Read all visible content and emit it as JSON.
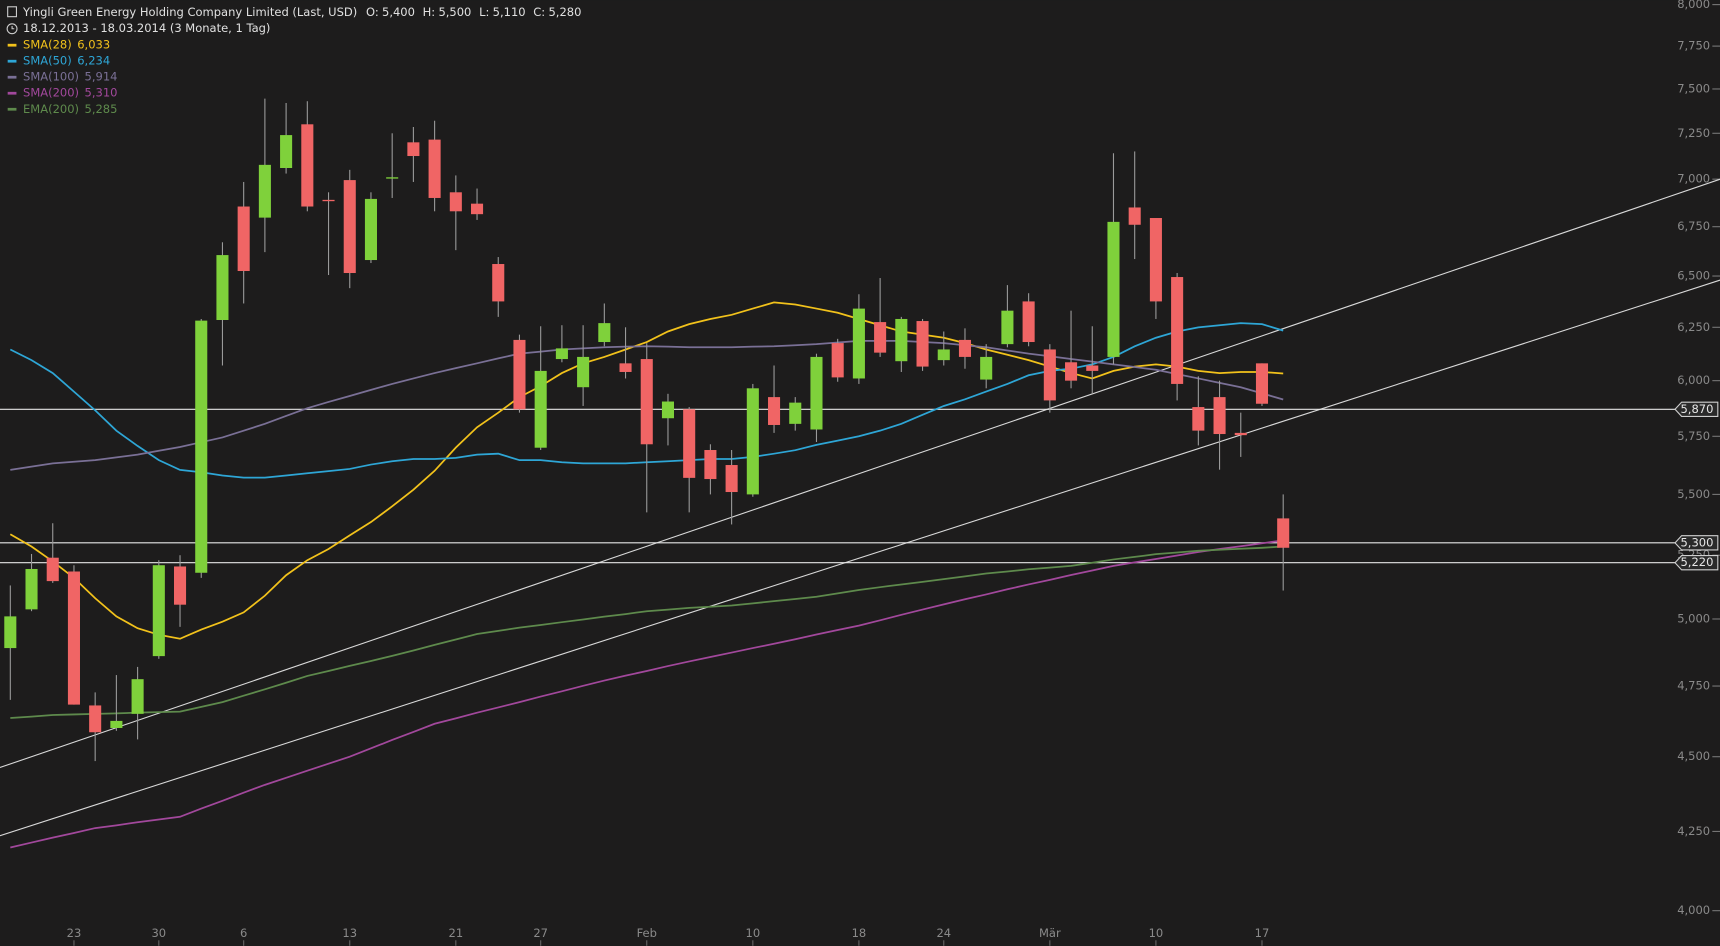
{
  "chart_data": {
    "type": "candlestick",
    "title": "Yingli Green Energy Holding Company Limited (Last, USD)",
    "ohlc_summary": [
      {
        "name": "O:",
        "label": "5,400"
      },
      {
        "name": "H:",
        "label": "5,500"
      },
      {
        "name": "L:",
        "label": "5,110"
      },
      {
        "name": "C:",
        "label": "5,280"
      }
    ],
    "subtitle": "18.12.2013 - 18.03.2014 (3 Monate, 1 Tag)",
    "categories": [
      null,
      null,
      null,
      "23",
      null,
      null,
      null,
      "30",
      null,
      null,
      null,
      "6",
      null,
      null,
      null,
      null,
      "13",
      null,
      null,
      null,
      null,
      "21",
      null,
      null,
      null,
      "27",
      null,
      null,
      null,
      null,
      "Feb",
      null,
      null,
      null,
      null,
      "10",
      null,
      null,
      null,
      null,
      "18",
      null,
      null,
      null,
      "24",
      null,
      null,
      null,
      null,
      "Mär",
      null,
      null,
      null,
      null,
      "10",
      null,
      null,
      null,
      null,
      "17",
      null
    ],
    "open": [
      4890,
      5037,
      5240,
      5185,
      4680,
      4600,
      4650,
      4860,
      5205,
      5180,
      6285,
      6855,
      6797,
      7060,
      7300,
      6890,
      6995,
      6580,
      7005,
      7200,
      7215,
      6930,
      6870,
      6560,
      6190,
      5700,
      6100,
      5970,
      6180,
      6080,
      6100,
      5830,
      5870,
      5690,
      5625,
      5500,
      5925,
      5805,
      5780,
      6175,
      6010,
      6275,
      6090,
      6280,
      6095,
      6190,
      6005,
      6170,
      6375,
      6145,
      6085,
      6070,
      6110,
      6850,
      6795,
      6495,
      5880,
      5925,
      5765,
      6080,
      5400
    ],
    "high": [
      5130,
      5255,
      5380,
      5210,
      4727,
      4790,
      4820,
      5230,
      5250,
      6290,
      6670,
      6985,
      7445,
      7420,
      7430,
      6930,
      7050,
      6930,
      7250,
      7285,
      7320,
      7020,
      6950,
      6595,
      6215,
      6255,
      6260,
      6260,
      6365,
      6250,
      6175,
      5940,
      5880,
      5715,
      5690,
      5985,
      6070,
      5925,
      6125,
      6195,
      6410,
      6490,
      6300,
      6290,
      6230,
      6245,
      6170,
      6455,
      6415,
      6170,
      6330,
      6255,
      7140,
      7150,
      6795,
      6515,
      6020,
      6000,
      5855,
      6080,
      5500
    ],
    "low": [
      4700,
      5030,
      5140,
      4683,
      4485,
      4590,
      4560,
      4850,
      4970,
      5160,
      6070,
      6365,
      6620,
      7030,
      6830,
      6505,
      6440,
      6565,
      6900,
      6985,
      6830,
      6630,
      6785,
      6300,
      5855,
      5690,
      6085,
      5885,
      6160,
      6010,
      5425,
      5710,
      5425,
      5500,
      5375,
      5490,
      5765,
      5775,
      5725,
      5995,
      5985,
      6110,
      6040,
      6045,
      6070,
      6055,
      5965,
      6155,
      6160,
      5855,
      5965,
      5940,
      6075,
      6585,
      6290,
      5910,
      5710,
      5605,
      5660,
      5885,
      5110
    ],
    "close": [
      5010,
      5195,
      5147,
      4683,
      4585,
      4625,
      4775,
      5210,
      5055,
      6282,
      6605,
      6525,
      7077,
      7240,
      6855,
      6885,
      6515,
      6895,
      7010,
      7125,
      6900,
      6830,
      6815,
      6375,
      5870,
      6045,
      6150,
      6110,
      6270,
      6040,
      5715,
      5905,
      5570,
      5565,
      5510,
      5965,
      5800,
      5900,
      6110,
      6015,
      6340,
      6130,
      6290,
      6065,
      6145,
      6110,
      6110,
      6330,
      6180,
      5910,
      6000,
      6045,
      6775,
      6760,
      6375,
      5985,
      5775,
      5760,
      5755,
      5895,
      5280
    ],
    "up_color": "#7fd13b",
    "down_color": "#f06565",
    "series": [
      {
        "name": "SMA(28)",
        "legend_value": "6,033",
        "color": "#f2c21b",
        "values": [
          5335,
          5285,
          5225,
          5160,
          5080,
          5010,
          4965,
          4940,
          4925,
          4960,
          4990,
          5025,
          5090,
          5170,
          5230,
          5275,
          5330,
          5385,
          5450,
          5520,
          5600,
          5700,
          5790,
          5855,
          5925,
          5975,
          6035,
          6080,
          6110,
          6145,
          6180,
          6230,
          6265,
          6290,
          6310,
          6340,
          6370,
          6360,
          6340,
          6320,
          6290,
          6260,
          6230,
          6215,
          6200,
          6175,
          6145,
          6120,
          6095,
          6065,
          6035,
          6010,
          6045,
          6065,
          6075,
          6065,
          6045,
          6035,
          6040,
          6040,
          6033
        ]
      },
      {
        "name": "SMA(50)",
        "legend_value": "6,234",
        "color": "#2ea6d6",
        "values": [
          6145,
          6095,
          6035,
          5950,
          5865,
          5775,
          5708,
          5646,
          5604,
          5594,
          5580,
          5571,
          5571,
          5580,
          5590,
          5599,
          5608,
          5627,
          5641,
          5651,
          5651,
          5656,
          5670,
          5674,
          5646,
          5646,
          5637,
          5632,
          5632,
          5632,
          5637,
          5641,
          5646,
          5651,
          5651,
          5660,
          5674,
          5689,
          5712,
          5731,
          5750,
          5775,
          5805,
          5845,
          5885,
          5915,
          5950,
          5985,
          6025,
          6045,
          6055,
          6075,
          6110,
          6160,
          6200,
          6230,
          6250,
          6260,
          6270,
          6265,
          6234
        ]
      },
      {
        "name": "SMA(100)",
        "legend_value": "5,914",
        "color": "#7a7096",
        "values": [
          5604,
          5618,
          5632,
          5639,
          5646,
          5658,
          5670,
          5687,
          5703,
          5724,
          5745,
          5775,
          5805,
          5840,
          5875,
          5903,
          5930,
          5958,
          5985,
          6010,
          6035,
          6058,
          6080,
          6103,
          6125,
          6135,
          6145,
          6150,
          6155,
          6158,
          6160,
          6158,
          6155,
          6155,
          6155,
          6158,
          6160,
          6165,
          6170,
          6178,
          6185,
          6185,
          6185,
          6180,
          6175,
          6165,
          6155,
          6140,
          6125,
          6113,
          6100,
          6088,
          6075,
          6063,
          6050,
          6030,
          6010,
          5990,
          5970,
          5942,
          5914
        ]
      },
      {
        "name": "SMA(200)",
        "legend_value": "5,310",
        "color": "#a2489c",
        "values": [
          4198,
          4214,
          4230,
          4245,
          4261,
          4270,
          4280,
          4289,
          4298,
          4325,
          4351,
          4378,
          4404,
          4428,
          4452,
          4476,
          4500,
          4529,
          4558,
          4586,
          4615,
          4634,
          4654,
          4673,
          4692,
          4712,
          4731,
          4751,
          4770,
          4788,
          4805,
          4823,
          4840,
          4857,
          4873,
          4890,
          4906,
          4923,
          4941,
          4958,
          4975,
          4995,
          5016,
          5036,
          5056,
          5076,
          5095,
          5115,
          5134,
          5152,
          5171,
          5189,
          5207,
          5221,
          5235,
          5249,
          5263,
          5275,
          5286,
          5298,
          5310
        ]
      },
      {
        "name": "EMA(200)",
        "legend_value": "5,285",
        "color": "#5e8a4c",
        "values": [
          4635,
          4640,
          4646,
          4648,
          4650,
          4652,
          4654,
          4656,
          4658,
          4675,
          4692,
          4715,
          4738,
          4762,
          4787,
          4805,
          4824,
          4842,
          4861,
          4881,
          4902,
          4922,
          4943,
          4955,
          4967,
          4977,
          4988,
          4998,
          5009,
          5019,
          5030,
          5036,
          5043,
          5047,
          5052,
          5060,
          5069,
          5077,
          5086,
          5099,
          5112,
          5123,
          5134,
          5144,
          5155,
          5166,
          5177,
          5185,
          5194,
          5200,
          5207,
          5220,
          5233,
          5243,
          5254,
          5261,
          5268,
          5272,
          5276,
          5280,
          5285
        ]
      }
    ],
    "hlines": [
      {
        "value": 5870,
        "label": "5,870"
      },
      {
        "value": 5300,
        "label": "5,300"
      },
      {
        "value": 5220,
        "label": "5,220"
      }
    ],
    "trendlines": [
      {
        "x": [
          -0.49,
          80.6
        ],
        "values": [
          4463,
          7000
        ]
      },
      {
        "x": [
          -0.49,
          80.6
        ],
        "values": [
          4236,
          6480
        ]
      }
    ],
    "log_scale": true,
    "ylim": [
      4000,
      8000
    ],
    "yticks": [
      {
        "value": 4000,
        "label": "4,000"
      },
      {
        "value": 4250,
        "label": "4,250"
      },
      {
        "value": 4500,
        "label": "4,500"
      },
      {
        "value": 4750,
        "label": "4,750"
      },
      {
        "value": 5000,
        "label": "5,000"
      },
      {
        "value": 5250,
        "label": "5,250"
      },
      {
        "value": 5500,
        "label": "5,500"
      },
      {
        "value": 5750,
        "label": "5,750"
      },
      {
        "value": 6000,
        "label": "6,000"
      },
      {
        "value": 6250,
        "label": "6,250"
      },
      {
        "value": 6500,
        "label": "6,500"
      },
      {
        "value": 6750,
        "label": "6,750"
      },
      {
        "value": 7000,
        "label": "7,000"
      },
      {
        "value": 7250,
        "label": "7,250"
      },
      {
        "value": 7500,
        "label": "7,500"
      },
      {
        "value": 7750,
        "label": "7,750"
      },
      {
        "value": 8000,
        "label": "8,000"
      }
    ]
  }
}
